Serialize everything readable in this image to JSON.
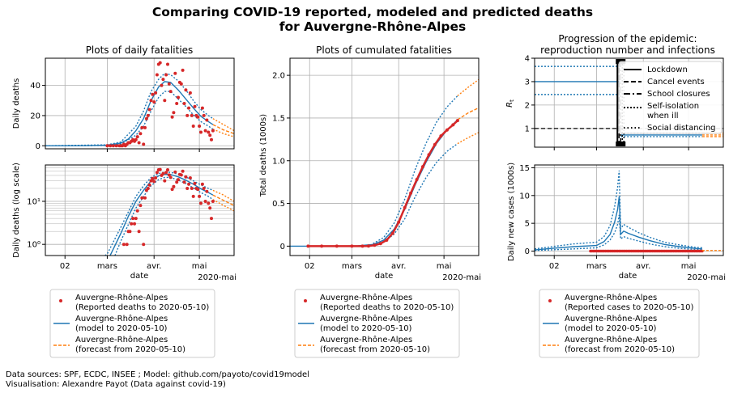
{
  "figure": {
    "title_line1": "Comparing COVID-19 reported, modeled and predicted deaths",
    "title_line2": "for Auvergne-Rhône-Alpes",
    "source_line1": "Data sources: SPF, ECDC, INSEE ; Model: github.com/payoto/covid19model",
    "source_line2": "Visualisation: Alexandre Payot (Data against covid-19)",
    "colors": {
      "reported": "#d62728",
      "model": "#1f77b4",
      "forecast": "#ff7f0e",
      "grid": "#b0b0b0"
    }
  },
  "panels": {
    "daily": {
      "title": "Plots of daily fatalities",
      "ylabel": "Daily deaths"
    },
    "daily_log": {
      "ylabel": "Daily deaths (log scale)",
      "xlabel": "date"
    },
    "cumulative": {
      "title": "Plots of cumulated fatalities",
      "ylabel": "Total deaths (1000s)",
      "xlabel": "date"
    },
    "rt": {
      "title_line1": "Progression of the epidemic:",
      "title_line2": "reproduction number and infections",
      "ylabel": "Rt"
    },
    "cases": {
      "ylabel": "Daily new cases (1000s)",
      "xlabel": "date"
    }
  },
  "x_ticks": [
    "02",
    "mars",
    "avr.",
    "mai"
  ],
  "x_year_label": "2020-mai",
  "interventions_legend": [
    "Lockdown",
    "Cancel events",
    "School closures",
    "Self-isolation",
    "when ill",
    "Social distancing"
  ],
  "legends": {
    "left": [
      "Auvergne-Rhône-Alpes",
      "(Reported deaths to  2020-05-10)",
      "Auvergne-Rhône-Alpes",
      "(model to  2020-05-10)",
      "Auvergne-Rhône-Alpes",
      "(forecast from  2020-05-10)"
    ],
    "middle": [
      "Auvergne-Rhône-Alpes",
      "(Reported deaths to  2020-05-10)",
      "Auvergne-Rhône-Alpes",
      "(model to  2020-05-10)",
      "Auvergne-Rhône-Alpes",
      "(forecast from  2020-05-10)"
    ],
    "right": [
      "Auvergne-Rhône-Alpes",
      "(Reported cases to  2020-05-10)",
      "Auvergne-Rhône-Alpes",
      "(model to  2020-05-10)",
      "Auvergne-Rhône-Alpes",
      "(forecast from  2020-05-10)"
    ]
  },
  "chart_data": [
    {
      "type": "scatter",
      "title": "Plots of daily fatalities",
      "ylabel": "Daily deaths",
      "x_ticks": [
        "02",
        "mars",
        "avr.",
        "mai"
      ],
      "y_ticks": [
        0,
        20,
        40
      ],
      "ylim": [
        -2,
        58
      ],
      "xlim": [
        "2020-01-20",
        "2020-05-24"
      ],
      "grid": true,
      "reported_deaths": {
        "x": [
          "2020-03-01",
          "2020-03-03",
          "2020-03-05",
          "2020-03-07",
          "2020-03-09",
          "2020-03-10",
          "2020-03-11",
          "2020-03-12",
          "2020-03-13",
          "2020-03-14",
          "2020-03-15",
          "2020-03-16",
          "2020-03-17",
          "2020-03-18",
          "2020-03-19",
          "2020-03-20",
          "2020-03-21",
          "2020-03-22",
          "2020-03-23",
          "2020-03-24",
          "2020-03-25",
          "2020-03-26",
          "2020-03-27",
          "2020-03-28",
          "2020-03-29",
          "2020-03-30",
          "2020-03-31",
          "2020-04-01",
          "2020-04-02",
          "2020-04-03",
          "2020-04-04",
          "2020-04-05",
          "2020-04-06",
          "2020-04-07",
          "2020-04-08",
          "2020-04-09",
          "2020-04-10",
          "2020-04-11",
          "2020-04-12",
          "2020-04-13",
          "2020-04-14",
          "2020-04-15",
          "2020-04-16",
          "2020-04-17",
          "2020-04-18",
          "2020-04-19",
          "2020-04-20",
          "2020-04-21",
          "2020-04-22",
          "2020-04-23",
          "2020-04-24",
          "2020-04-25",
          "2020-04-26",
          "2020-04-27",
          "2020-04-28",
          "2020-04-29",
          "2020-04-30",
          "2020-05-01",
          "2020-05-02",
          "2020-05-03",
          "2020-05-04",
          "2020-05-05",
          "2020-05-06",
          "2020-05-07",
          "2020-05-08",
          "2020-05-09",
          "2020-05-10"
        ],
        "y": [
          0,
          0,
          0,
          0,
          0,
          0,
          0,
          1,
          0,
          1,
          2,
          2,
          3,
          4,
          3,
          4,
          6,
          2,
          8,
          12,
          1,
          12,
          18,
          20,
          24,
          30,
          34,
          29,
          35,
          47,
          54,
          55,
          40,
          44,
          30,
          47,
          54,
          41,
          36,
          19,
          22,
          48,
          28,
          32,
          42,
          41,
          50,
          28,
          37,
          20,
          25,
          35,
          20,
          13,
          26,
          20,
          19,
          13,
          9,
          25,
          20,
          10,
          17,
          9,
          7,
          4,
          10
        ]
      },
      "model_mean": {
        "x": [
          "2020-01-20",
          "2020-02-15",
          "2020-03-01",
          "2020-03-10",
          "2020-03-15",
          "2020-03-20",
          "2020-03-25",
          "2020-03-30",
          "2020-04-04",
          "2020-04-08",
          "2020-04-12",
          "2020-04-17",
          "2020-04-22",
          "2020-04-27",
          "2020-05-02",
          "2020-05-07",
          "2020-05-10"
        ],
        "y": [
          0,
          0.1,
          0.4,
          1.8,
          4.5,
          10,
          18,
          30,
          39,
          42.5,
          42,
          37,
          31,
          25,
          19.5,
          16,
          14
        ]
      },
      "model_ci_upper": {
        "x": [
          "2020-01-20",
          "2020-03-01",
          "2020-03-10",
          "2020-03-20",
          "2020-03-25",
          "2020-03-30",
          "2020-04-04",
          "2020-04-08",
          "2020-04-12",
          "2020-04-17",
          "2020-04-22",
          "2020-04-27",
          "2020-05-02",
          "2020-05-07",
          "2020-05-10"
        ],
        "y": [
          0,
          0.6,
          2.5,
          13,
          23,
          36,
          44,
          48,
          47,
          43,
          37,
          30,
          24,
          20,
          18
        ]
      },
      "model_ci_lower": {
        "x": [
          "2020-01-20",
          "2020-03-01",
          "2020-03-10",
          "2020-03-20",
          "2020-03-25",
          "2020-03-30",
          "2020-04-04",
          "2020-04-08",
          "2020-04-12",
          "2020-04-17",
          "2020-04-22",
          "2020-04-27",
          "2020-05-02",
          "2020-05-07",
          "2020-05-10"
        ],
        "y": [
          0,
          0.2,
          1.2,
          7,
          13,
          23,
          32,
          36,
          36,
          31,
          26,
          20.5,
          16,
          13,
          11
        ]
      },
      "forecast_mean": {
        "x": [
          "2020-05-10",
          "2020-05-17",
          "2020-05-24"
        ],
        "y": [
          14,
          10.5,
          8
        ]
      },
      "forecast_ci_upper": {
        "x": [
          "2020-05-10",
          "2020-05-17",
          "2020-05-24"
        ],
        "y": [
          18,
          14,
          10
        ]
      },
      "forecast_ci_lower": {
        "x": [
          "2020-05-10",
          "2020-05-17",
          "2020-05-24"
        ],
        "y": [
          11,
          8,
          6
        ]
      }
    },
    {
      "type": "scatter",
      "ylabel": "Daily deaths (log scale)",
      "xlabel": "date",
      "y_scale": "log",
      "y_ticks": [
        "10⁰",
        "10¹"
      ],
      "ylim": [
        0.55,
        70
      ],
      "note": "same data as the daily deaths panel on a logarithmic axis"
    },
    {
      "type": "line",
      "title": "Plots of cumulated fatalities",
      "ylabel": "Total deaths (1000s)",
      "xlabel": "date",
      "y_ticks": [
        0,
        0.5,
        1.0,
        1.5,
        2.0
      ],
      "ylim": [
        -0.11,
        2.2
      ],
      "reported_deaths": {
        "x": [
          "2020-02-01",
          "2020-02-10",
          "2020-02-20",
          "2020-03-01",
          "2020-03-08",
          "2020-03-12",
          "2020-03-16",
          "2020-03-20",
          "2020-03-24",
          "2020-03-28",
          "2020-04-01",
          "2020-04-05",
          "2020-04-09",
          "2020-04-13",
          "2020-04-17",
          "2020-04-21",
          "2020-04-25",
          "2020-04-29",
          "2020-05-03",
          "2020-05-07",
          "2020-05-10"
        ],
        "y": [
          0,
          0,
          0,
          0,
          0,
          0.002,
          0.01,
          0.03,
          0.07,
          0.15,
          0.28,
          0.45,
          0.62,
          0.78,
          0.93,
          1.07,
          1.19,
          1.29,
          1.36,
          1.42,
          1.47
        ]
      },
      "model_mean": {
        "x": [
          "2020-01-20",
          "2020-02-20",
          "2020-03-05",
          "2020-03-15",
          "2020-03-22",
          "2020-03-29",
          "2020-04-05",
          "2020-04-12",
          "2020-04-19",
          "2020-04-26",
          "2020-05-03",
          "2020-05-10"
        ],
        "y": [
          0,
          0,
          0.005,
          0.02,
          0.07,
          0.2,
          0.43,
          0.72,
          0.98,
          1.2,
          1.36,
          1.48
        ]
      },
      "model_ci_upper": {
        "x": [
          "2020-03-15",
          "2020-03-22",
          "2020-03-29",
          "2020-04-05",
          "2020-04-12",
          "2020-04-19",
          "2020-04-26",
          "2020-05-03",
          "2020-05-10"
        ],
        "y": [
          0.03,
          0.1,
          0.27,
          0.55,
          0.9,
          1.2,
          1.45,
          1.63,
          1.76
        ]
      },
      "model_ci_lower": {
        "x": [
          "2020-03-15",
          "2020-03-22",
          "2020-03-29",
          "2020-04-05",
          "2020-04-12",
          "2020-04-19",
          "2020-04-26",
          "2020-05-03",
          "2020-05-10"
        ],
        "y": [
          0.015,
          0.05,
          0.14,
          0.32,
          0.58,
          0.8,
          0.98,
          1.11,
          1.2
        ]
      },
      "forecast_mean": {
        "x": [
          "2020-05-10",
          "2020-05-17",
          "2020-05-24"
        ],
        "y": [
          1.48,
          1.56,
          1.62
        ]
      },
      "forecast_ci_upper": {
        "x": [
          "2020-05-10",
          "2020-05-17",
          "2020-05-24"
        ],
        "y": [
          1.76,
          1.86,
          1.95
        ]
      },
      "forecast_ci_lower": {
        "x": [
          "2020-05-10",
          "2020-05-17",
          "2020-05-24"
        ],
        "y": [
          1.2,
          1.27,
          1.33
        ]
      }
    },
    {
      "type": "line",
      "title": "Progression of the epidemic: reproduction number and infections",
      "ylabel": "Rt",
      "y_ticks": [
        1,
        2,
        3,
        4
      ],
      "ylim": [
        0.2,
        4
      ],
      "rt_before_lockdown": {
        "mean": 3.0,
        "upper": 3.65,
        "lower": 2.45,
        "until": "2020-03-17"
      },
      "rt_after_lockdown": {
        "mean": 0.72,
        "upper": 0.8,
        "lower": 0.65,
        "from": "2020-03-17"
      },
      "intervention_date": "2020-03-17",
      "legend": [
        "Lockdown",
        "Cancel events",
        "School closures",
        "Self-isolation when ill",
        "Social distancing"
      ],
      "legend_position": "upper right"
    },
    {
      "type": "line",
      "ylabel": "Daily new cases (1000s)",
      "xlabel": "date",
      "y_ticks": [
        0,
        5,
        10,
        15
      ],
      "ylim": [
        -0.8,
        15.5
      ],
      "model_mean": {
        "x": [
          "2020-01-20",
          "2020-02-01",
          "2020-02-15",
          "2020-03-01",
          "2020-03-06",
          "2020-03-10",
          "2020-03-13",
          "2020-03-15",
          "2020-03-16",
          "2020-03-17",
          "2020-03-19",
          "2020-03-22",
          "2020-03-29",
          "2020-04-05",
          "2020-04-15",
          "2020-04-25",
          "2020-05-05",
          "2020-05-10"
        ],
        "y": [
          0.2,
          0.5,
          0.8,
          1.0,
          1.7,
          3.0,
          5.2,
          7.5,
          9.8,
          3.0,
          3.6,
          3.2,
          2.5,
          1.9,
          1.2,
          0.8,
          0.5,
          0.4
        ]
      },
      "model_ci_upper": {
        "x": [
          "2020-01-20",
          "2020-02-15",
          "2020-03-01",
          "2020-03-06",
          "2020-03-10",
          "2020-03-13",
          "2020-03-15",
          "2020-03-16",
          "2020-03-17",
          "2020-03-19",
          "2020-03-22",
          "2020-03-29",
          "2020-04-05",
          "2020-04-15",
          "2020-04-25",
          "2020-05-05",
          "2020-05-10"
        ],
        "y": [
          0.4,
          1.3,
          1.6,
          2.6,
          4.6,
          8.0,
          11.5,
          14.5,
          4.0,
          4.8,
          4.3,
          3.3,
          2.5,
          1.6,
          1.1,
          0.7,
          0.6
        ]
      },
      "model_ci_lower": {
        "x": [
          "2020-01-20",
          "2020-02-15",
          "2020-03-01",
          "2020-03-06",
          "2020-03-10",
          "2020-03-13",
          "2020-03-15",
          "2020-03-16",
          "2020-03-17",
          "2020-03-19",
          "2020-03-22",
          "2020-03-29",
          "2020-04-05",
          "2020-04-15",
          "2020-04-25",
          "2020-05-05",
          "2020-05-10"
        ],
        "y": [
          0.1,
          0.4,
          0.6,
          1.1,
          2.0,
          3.3,
          4.8,
          6.5,
          2.2,
          2.6,
          2.3,
          1.8,
          1.3,
          0.8,
          0.5,
          0.3,
          0.25
        ]
      },
      "reported_cases": {
        "from": "2020-02-26",
        "to": "2020-05-10",
        "approx_value": 0
      }
    }
  ]
}
